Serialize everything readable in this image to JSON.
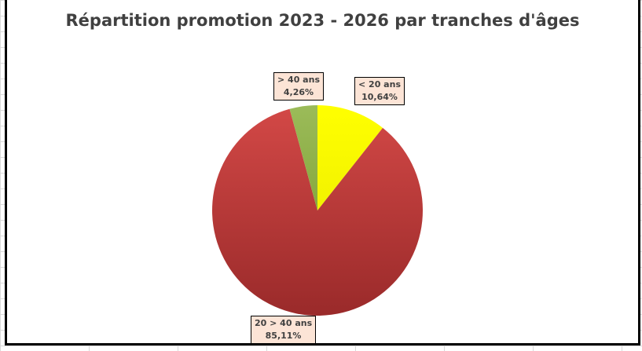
{
  "chart_data": {
    "type": "pie",
    "title": "Répartition promotion 2023 - 2026 par tranches d'âges",
    "start_angle": "top",
    "direction": "clockwise",
    "slices": [
      {
        "label": "< 20 ans",
        "value": 10.64,
        "display": "10,64%",
        "color": "#ffff00"
      },
      {
        "label": "20 > 40 ans",
        "value": 85.11,
        "display": "85,11%",
        "color": "#c0393b"
      },
      {
        "label": "> 40 ans",
        "value": 4.26,
        "display": "4,26%",
        "color": "#9bbb59"
      }
    ]
  }
}
